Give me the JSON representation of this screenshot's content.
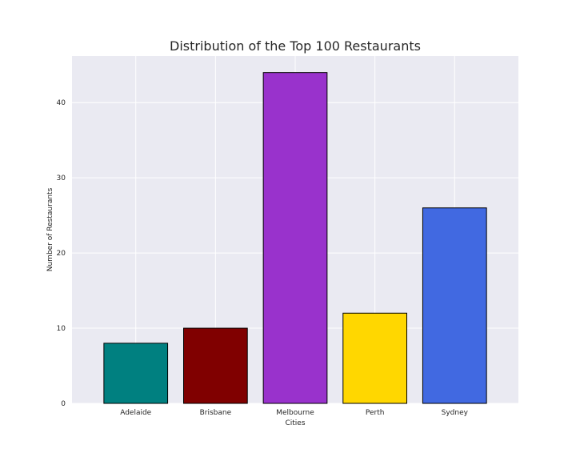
{
  "chart_data": {
    "type": "bar",
    "title": "Distribution of the Top 100 Restaurants",
    "xlabel": "Cities",
    "ylabel": "Number of Restaurants",
    "categories": [
      "Adelaide",
      "Brisbane",
      "Melbourne",
      "Perth",
      "Sydney"
    ],
    "values": [
      8,
      10,
      44,
      12,
      26
    ],
    "colors": [
      "#008080",
      "#800000",
      "#9932CC",
      "#FFD700",
      "#4169E1"
    ],
    "yticks": [
      0,
      10,
      20,
      30,
      40
    ],
    "ylim": [
      0,
      46.2
    ],
    "grid": true,
    "background": "#EAEAF2"
  }
}
